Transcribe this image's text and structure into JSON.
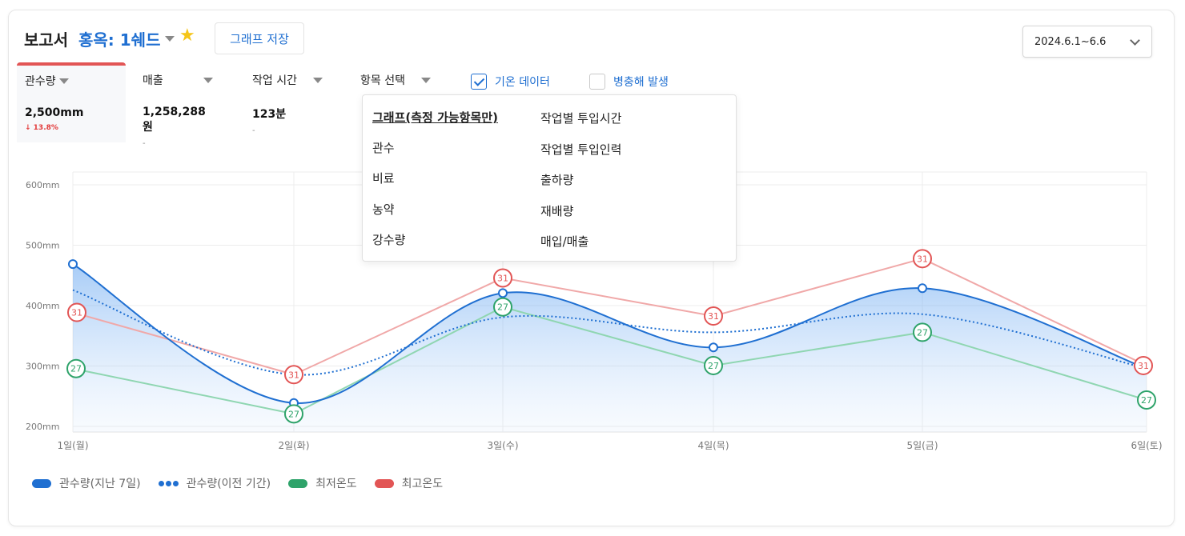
{
  "header": {
    "title": "보고서",
    "crop": "홍옥: 1쉐드",
    "save_label": "그래프 저장",
    "date_range": "2024.6.1~6.6"
  },
  "metrics": [
    {
      "label": "관수량",
      "value": "2,500mm",
      "sub": "↓ 13.8%"
    },
    {
      "label": "매출",
      "value": "1,258,288원",
      "sub": "-"
    },
    {
      "label": "작업 시간",
      "value": "123분",
      "sub": "-"
    },
    {
      "label": "항목 선택",
      "value": "",
      "sub": ""
    }
  ],
  "toggles": {
    "weather": {
      "label": "기온 데이터",
      "checked": true
    },
    "pest": {
      "label": "병충해 발생",
      "checked": false
    }
  },
  "dropdown": {
    "left": [
      "그래프(측정 가능항목만)",
      "관수",
      "비료",
      "농약",
      "강수량"
    ],
    "right": [
      "작업별 투입시간",
      "작업별 투입인력",
      "출하량",
      "재배량",
      "매입/매출"
    ]
  },
  "chart_data": {
    "type": "line",
    "categories": [
      "1일(월)",
      "2일(화)",
      "3일(수)",
      "4일(목)",
      "5일(금)",
      "6일(토)"
    ],
    "y_ticks": [
      "600mm",
      "500mm",
      "400mm",
      "300mm",
      "200mm"
    ],
    "ylim": [
      200,
      600
    ],
    "grid": true,
    "series": [
      {
        "name": "관수량(지난 7일)",
        "values": [
          478,
          248,
          430,
          340,
          438,
          305
        ],
        "color": "#1f6fd1",
        "style": "solid-area"
      },
      {
        "name": "관수량(이전 기간)",
        "values": [
          435,
          295,
          390,
          365,
          395,
          305
        ],
        "color": "#1f6fd1",
        "style": "dotted"
      },
      {
        "name": "최저온도",
        "values": [
          305,
          230,
          407,
          310,
          365,
          253
        ],
        "color": "#2ea36a",
        "labels": [
          "27",
          "27",
          "27",
          "27",
          "27",
          "27"
        ]
      },
      {
        "name": "최고온도",
        "values": [
          398,
          295,
          455,
          392,
          487,
          310
        ],
        "color": "#e25555",
        "labels": [
          "31",
          "31",
          "31",
          "31",
          "31",
          "31"
        ]
      }
    ]
  },
  "legend": {
    "items": [
      "관수량(지난 7일)",
      "관수량(이전 기간)",
      "최저온도",
      "최고온도"
    ]
  }
}
